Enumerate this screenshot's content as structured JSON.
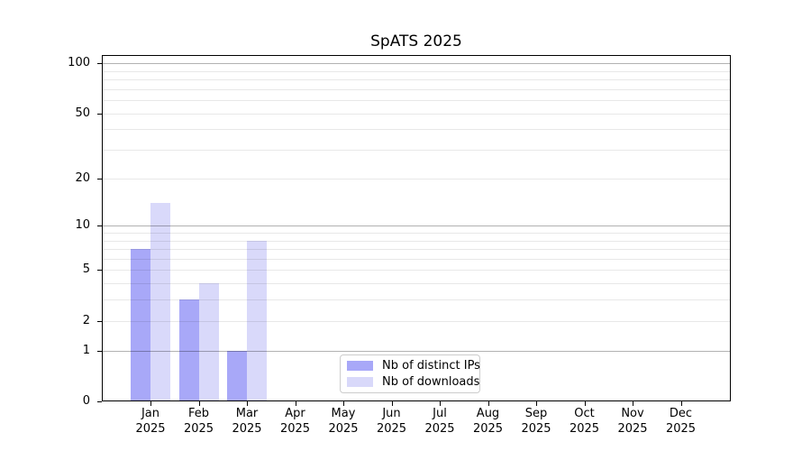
{
  "chart_data": {
    "type": "bar",
    "title": "SpATS 2025",
    "categories": [
      "Jan",
      "Feb",
      "Mar",
      "Apr",
      "May",
      "Jun",
      "Jul",
      "Aug",
      "Sep",
      "Oct",
      "Nov",
      "Dec"
    ],
    "category_year": "2025",
    "series": [
      {
        "name": "Nb of distinct IPs",
        "slug": "distinct-ips",
        "color": "#a8a8f8",
        "values": [
          7,
          3,
          1,
          0,
          0,
          0,
          0,
          0,
          0,
          0,
          0,
          0
        ]
      },
      {
        "name": "Nb of downloads",
        "slug": "downloads",
        "color": "#d9d9fa",
        "values": [
          14,
          4,
          8,
          0,
          0,
          0,
          0,
          0,
          0,
          0,
          0,
          0
        ]
      }
    ],
    "y_axis": {
      "scale": "log10(value+1)",
      "tick_values": [
        0,
        1,
        2,
        5,
        10,
        20,
        50,
        100
      ],
      "major_grid_values": [
        1,
        10,
        100
      ],
      "minor_grid_values": [
        2,
        3,
        4,
        5,
        6,
        7,
        8,
        9,
        20,
        30,
        40,
        50,
        60,
        70,
        80,
        90
      ],
      "range_min": 0,
      "range_max": 112
    },
    "legend": {
      "position": "lower center"
    },
    "grid": true
  },
  "colors": {
    "background": "#ffffff",
    "spine": "#000000",
    "major_grid": "rgba(0,0,0,0.30)",
    "minor_grid": "rgba(0,0,0,0.09)",
    "legend_border": "#cccccc"
  }
}
